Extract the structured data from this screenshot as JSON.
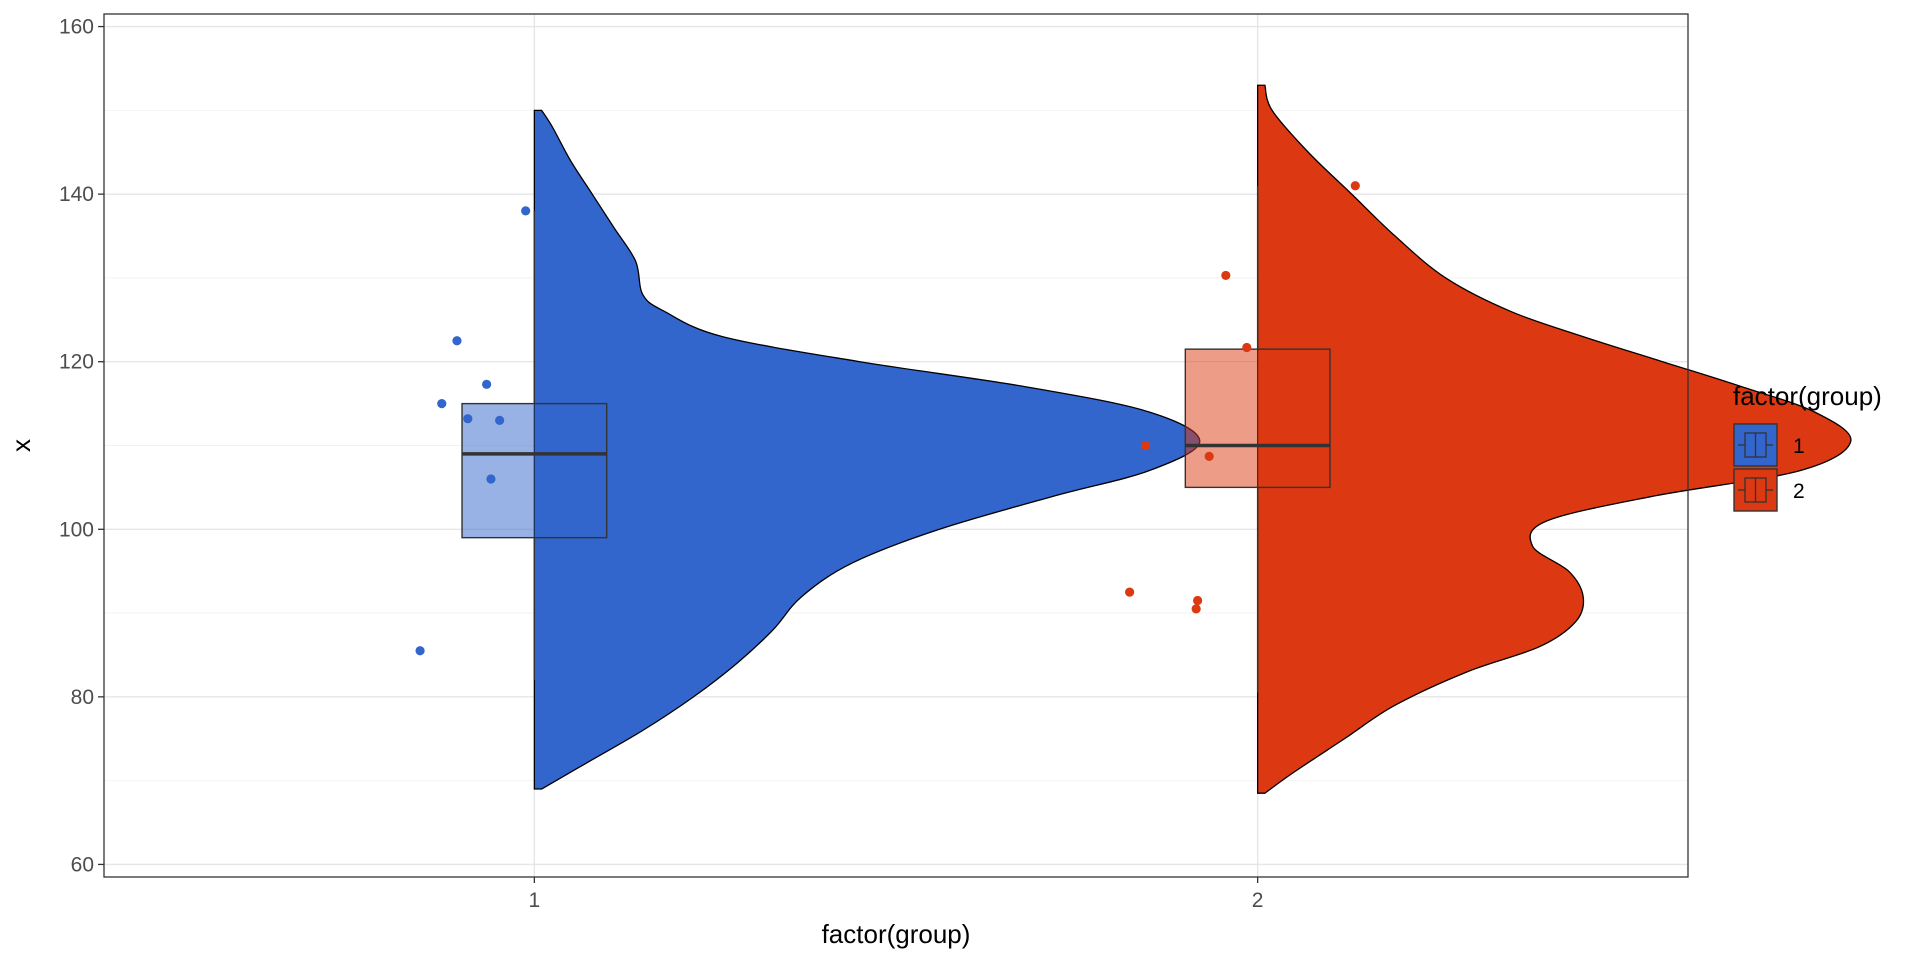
{
  "chart_data": {
    "type": "raincloud",
    "title": "",
    "xlabel": "factor(group)",
    "ylabel": "x",
    "ylim": [
      58.5,
      161.5
    ],
    "yticks": [
      60,
      80,
      100,
      120,
      140,
      160
    ],
    "categories": [
      "1",
      "2"
    ],
    "grid": true,
    "legend": {
      "title": "factor(group)",
      "placement": "right",
      "entries": [
        "1",
        "2"
      ]
    },
    "series": [
      {
        "name": "1",
        "color": "#3366cc",
        "box": {
          "lower": 99,
          "q1": 99,
          "median": 109,
          "q3": 115,
          "whisker_low": 82,
          "whisker_high": 138
        },
        "density": {
          "y": [
            69,
            72,
            76,
            80,
            84,
            88,
            92,
            96,
            100,
            104,
            107,
            110.5,
            114,
            117,
            120,
            123,
            126,
            128,
            132,
            136,
            140,
            144,
            148,
            150
          ],
          "width": [
            0.01,
            0.07,
            0.15,
            0.22,
            0.28,
            0.33,
            0.37,
            0.44,
            0.56,
            0.72,
            0.85,
            0.92,
            0.85,
            0.68,
            0.45,
            0.26,
            0.18,
            0.15,
            0.14,
            0.11,
            0.08,
            0.05,
            0.025,
            0.01
          ]
        },
        "points": [
          {
            "x": 0.842,
            "y": 85.5
          },
          {
            "x": 0.872,
            "y": 115.0
          },
          {
            "x": 0.893,
            "y": 122.5
          },
          {
            "x": 0.908,
            "y": 113.2
          },
          {
            "x": 0.934,
            "y": 117.3
          },
          {
            "x": 0.94,
            "y": 106.0
          },
          {
            "x": 0.952,
            "y": 113.0
          },
          {
            "x": 0.988,
            "y": 138.0
          }
        ]
      },
      {
        "name": "2",
        "color": "#dc3912",
        "box": {
          "q1": 105,
          "median": 110,
          "q3": 121.5,
          "whisker_low": 80.5,
          "whisker_high": 141
        },
        "density": {
          "y": [
            68.5,
            71,
            75,
            79,
            83,
            86,
            89,
            92,
            95,
            98,
            101,
            104,
            107,
            110.5,
            114,
            117,
            120,
            123,
            126,
            130,
            135,
            140,
            145,
            150,
            153
          ],
          "width": [
            0.01,
            0.05,
            0.12,
            0.19,
            0.29,
            0.39,
            0.44,
            0.45,
            0.43,
            0.38,
            0.4,
            0.55,
            0.75,
            0.82,
            0.77,
            0.67,
            0.56,
            0.45,
            0.35,
            0.26,
            0.19,
            0.13,
            0.07,
            0.02,
            0.01
          ]
        },
        "points": [
          {
            "x": 1.823,
            "y": 92.5
          },
          {
            "x": 1.845,
            "y": 110.0
          },
          {
            "x": 1.915,
            "y": 90.5
          },
          {
            "x": 1.917,
            "y": 91.5
          },
          {
            "x": 1.933,
            "y": 108.7
          },
          {
            "x": 1.956,
            "y": 130.3
          },
          {
            "x": 1.985,
            "y": 121.7
          },
          {
            "x": 2.135,
            "y": 141.0
          }
        ]
      }
    ]
  }
}
